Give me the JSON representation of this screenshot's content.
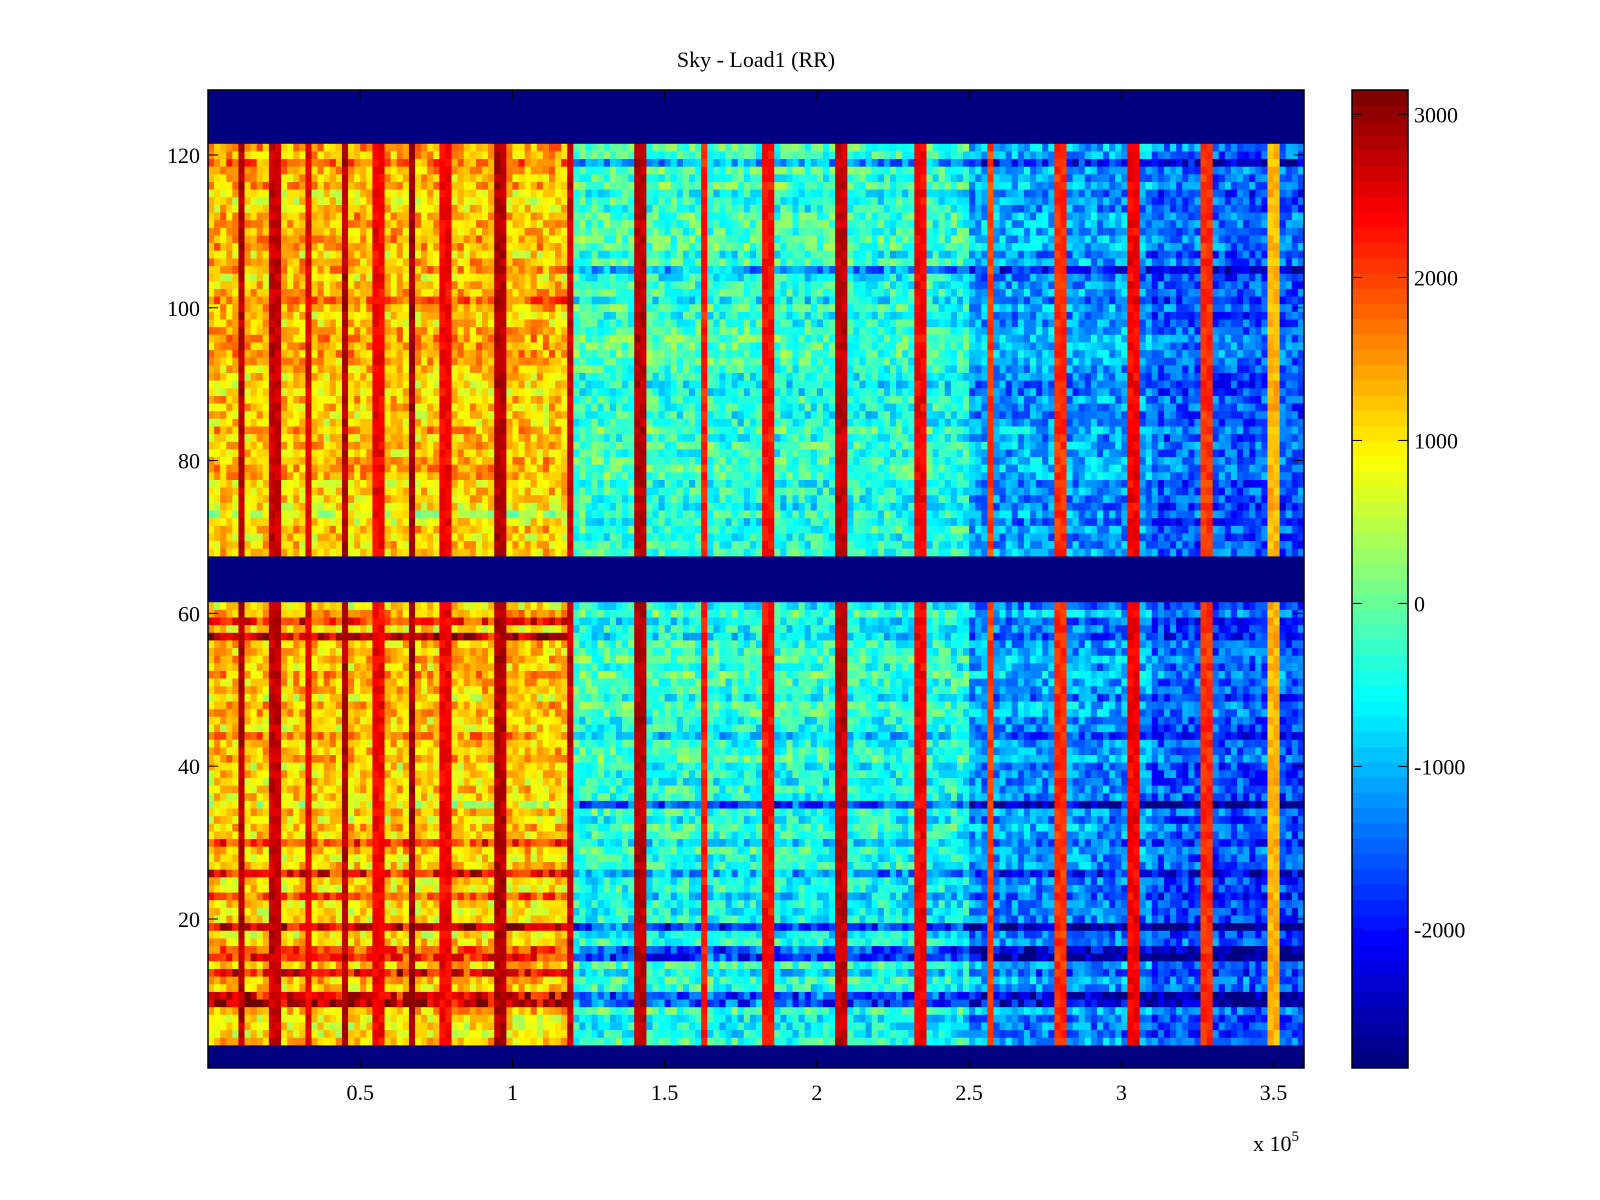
{
  "chart_data": {
    "type": "heatmap",
    "title": "Sky - Load1 (RR)",
    "xlabel": "",
    "ylabel": "",
    "x_multiplier_label": "x 10",
    "x_multiplier_exponent": "5",
    "xlim": [
      0,
      3.6
    ],
    "ylim": [
      0.5,
      128.5
    ],
    "x_ticks": [
      0.5,
      1,
      1.5,
      2,
      2.5,
      3,
      3.5
    ],
    "x_tick_labels": [
      "0.5",
      "1",
      "1.5",
      "2",
      "2.5",
      "3",
      "3.5"
    ],
    "y_ticks": [
      20,
      40,
      60,
      80,
      100,
      120
    ],
    "y_tick_labels": [
      "20",
      "40",
      "60",
      "80",
      "100",
      "120"
    ],
    "rows": 128,
    "colormap": "jet",
    "clim": [
      -2850,
      3150
    ],
    "colorbar": {
      "ticks": [
        -2000,
        -1000,
        0,
        1000,
        2000,
        3000
      ],
      "tick_labels": [
        "-2000",
        "-1000",
        "0",
        "1000",
        "2000",
        "3000"
      ],
      "location": "right"
    },
    "masked_rows": [
      {
        "from": 1,
        "to": 3,
        "value": -2850
      },
      {
        "from": 62,
        "to": 67,
        "value": -2850
      },
      {
        "from": 122,
        "to": 128,
        "value": -2850
      }
    ],
    "x_segments": [
      {
        "from": 0,
        "to": 1.2,
        "mean_low_rows": 1100,
        "mean_high_rows": 1250
      },
      {
        "from": 1.2,
        "to": 2.5,
        "mean_low_rows": -300,
        "mean_high_rows": -200
      },
      {
        "from": 2.5,
        "to": 3.6,
        "mean_low_rows": -900,
        "mean_high_rows": -900
      }
    ],
    "vertical_stripes": [
      {
        "x": 0.11,
        "value": 3000
      },
      {
        "x": 0.22,
        "value": 2900
      },
      {
        "x": 0.33,
        "value": 2700
      },
      {
        "x": 0.45,
        "value": 3000
      },
      {
        "x": 0.56,
        "value": 2600
      },
      {
        "x": 0.67,
        "value": 3100
      },
      {
        "x": 0.78,
        "value": 2600
      },
      {
        "x": 0.96,
        "value": 3000
      },
      {
        "x": 1.19,
        "value": 2900
      },
      {
        "x": 1.42,
        "value": 3000
      },
      {
        "x": 1.63,
        "value": 2400
      },
      {
        "x": 1.84,
        "value": 2500
      },
      {
        "x": 2.08,
        "value": 2900
      },
      {
        "x": 2.34,
        "value": 2600
      },
      {
        "x": 2.57,
        "value": 2200
      },
      {
        "x": 2.8,
        "value": 2300
      },
      {
        "x": 3.04,
        "value": 2600
      },
      {
        "x": 3.28,
        "value": 2300
      },
      {
        "x": 3.5,
        "value": 1500
      }
    ],
    "row_anomalies": [
      {
        "row": 9,
        "offset_left": 2000,
        "offset_right": -1500
      },
      {
        "row": 10,
        "offset_left": 1800,
        "offset_right": -1400
      },
      {
        "row": 13,
        "offset_left": 1300,
        "offset_right": -600
      },
      {
        "row": 15,
        "offset_left": 1500,
        "offset_right": -1300
      },
      {
        "row": 16,
        "offset_left": 800,
        "offset_right": -1500
      },
      {
        "row": 19,
        "offset_left": 1600,
        "offset_right": -1800
      },
      {
        "row": 23,
        "offset_left": 900,
        "offset_right": -500
      },
      {
        "row": 26,
        "offset_left": 1400,
        "offset_right": -900
      },
      {
        "row": 30,
        "offset_left": 1000,
        "offset_right": -400
      },
      {
        "row": 35,
        "offset_left": -300,
        "offset_right": -1200
      },
      {
        "row": 44,
        "offset_left": 700,
        "offset_right": -300
      },
      {
        "row": 57,
        "offset_left": 1700,
        "offset_right": -700
      },
      {
        "row": 59,
        "offset_left": 1000,
        "offset_right": -500
      },
      {
        "row": 73,
        "offset_left": -700,
        "offset_right": 200
      },
      {
        "row": 101,
        "offset_left": 800,
        "offset_right": -300
      },
      {
        "row": 105,
        "offset_left": 300,
        "offset_right": -900
      },
      {
        "row": 114,
        "offset_left": -600,
        "offset_right": -300
      },
      {
        "row": 119,
        "offset_left": 700,
        "offset_right": -800
      }
    ]
  }
}
